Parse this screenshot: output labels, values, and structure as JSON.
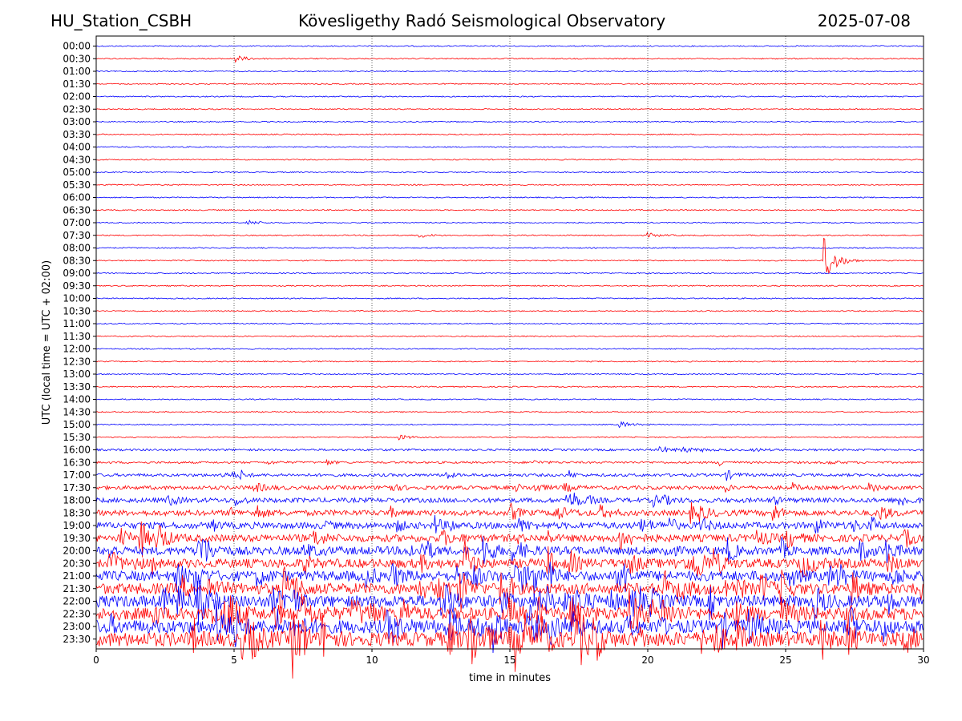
{
  "header": {
    "station": "HU_Station_CSBH",
    "observatory": "Kövesligethy Radó Seismological Observatory",
    "date": "2025-07-08"
  },
  "chart_data": {
    "type": "line",
    "title": "Kövesligethy Radó Seismological Observatory",
    "xlabel": "time in minutes",
    "ylabel": "UTC (local time = UTC + 02:00)",
    "xlim": [
      0,
      30
    ],
    "x_ticks": [
      "0",
      "5",
      "10",
      "15",
      "20",
      "25",
      "30"
    ],
    "x_tick_values": [
      0,
      5,
      10,
      15,
      20,
      25,
      30
    ],
    "grid": "vertical dotted at each x tick",
    "row_labels": [
      "00:00",
      "00:30",
      "01:00",
      "01:30",
      "02:00",
      "02:30",
      "03:00",
      "03:30",
      "04:00",
      "04:30",
      "05:00",
      "05:30",
      "06:00",
      "06:30",
      "07:00",
      "07:30",
      "08:00",
      "08:30",
      "09:00",
      "09:30",
      "10:00",
      "10:30",
      "11:00",
      "11:30",
      "12:00",
      "12:30",
      "13:00",
      "13:30",
      "14:00",
      "14:30",
      "15:00",
      "15:30",
      "16:00",
      "16:30",
      "17:00",
      "17:30",
      "18:00",
      "18:30",
      "19:00",
      "19:30",
      "20:00",
      "20:30",
      "21:00",
      "21:30",
      "22:00",
      "22:30",
      "23:00",
      "23:30"
    ],
    "row_colors": [
      "#0000ff",
      "#ff0000"
    ],
    "events": [
      {
        "row": "00:30",
        "minute": 5.0,
        "amplitude": 5
      },
      {
        "row": "07:00",
        "minute": 5.5,
        "amplitude": 3
      },
      {
        "row": "07:30",
        "minute": 11.7,
        "amplitude": 3
      },
      {
        "row": "07:30",
        "minute": 20.0,
        "amplitude": 3
      },
      {
        "row": "08:30",
        "minute": 26.4,
        "amplitude": 30
      },
      {
        "row": "15:00",
        "minute": 19.0,
        "amplitude": 4
      },
      {
        "row": "15:30",
        "minute": 11.0,
        "amplitude": 3
      }
    ]
  }
}
